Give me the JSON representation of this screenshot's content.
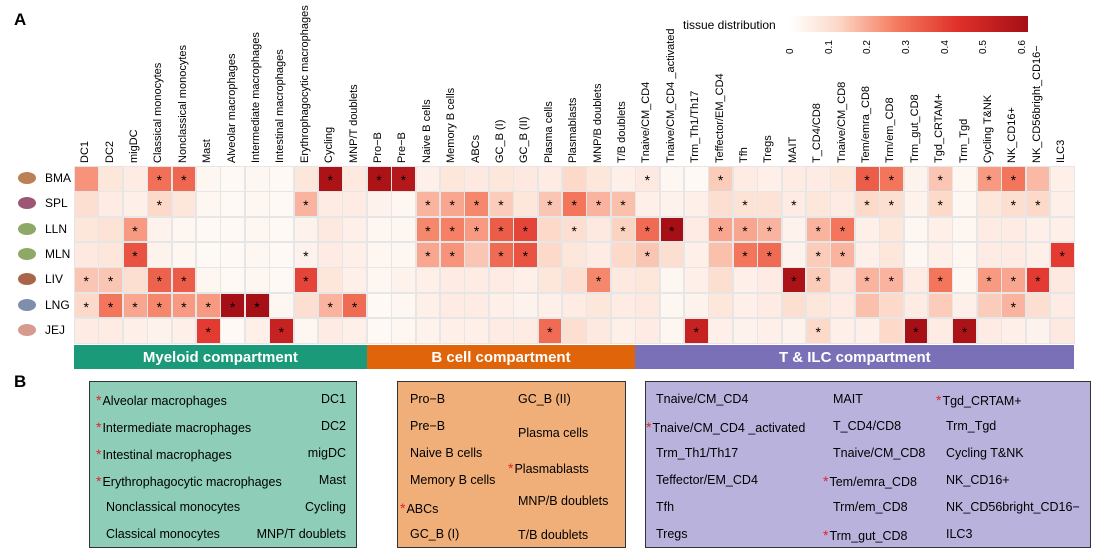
{
  "panel_a_letter": "A",
  "panel_b_letter": "B",
  "colorbar": {
    "title": "tissue distribution",
    "ticks": [
      "0",
      "0.1",
      "0.2",
      "0.3",
      "0.4",
      "0.5",
      "0.6"
    ],
    "min": 0,
    "max": 0.6,
    "low_color": "#ffffff",
    "high_color": "#a50f15"
  },
  "chart_data": {
    "type": "heatmap",
    "title": "",
    "colorbar_label": "tissue distribution",
    "rows": [
      "BMA",
      "SPL",
      "LLN",
      "MLN",
      "LIV",
      "LNG",
      "JEJ"
    ],
    "columns": [
      "DC1",
      "DC2",
      "migDC",
      "Classical monocytes",
      "Nonclassical monocytes",
      "Mast",
      "Alveolar macrophages",
      "Intermediate macrophages",
      "Intestinal macrophages",
      "Erythrophagocytic macrophages",
      "Cycling",
      "MNP/T doublets",
      "Pro−B",
      "Pre−B",
      "Naive B cells",
      "Memory B cells",
      "ABCs",
      "GC_B (I)",
      "GC_B (II)",
      "Plasma cells",
      "Plasmablasts",
      "MNP/B doublets",
      "T/B doublets",
      "Tnaive/CM_CD4",
      "Tnaive/CM_CD4 _activated",
      "Trm_Th1/Th17",
      "Teffector/EM_CD4",
      "Tfh",
      "Tregs",
      "MAIT",
      "T_CD4/CD8",
      "Tnaive/CM_CD8",
      "Tem/emra_CD8",
      "Trm/em_CD8",
      "Trm_gut_CD8",
      "Tgd_CRTAM+",
      "Trm_Tgd",
      "Cycling T&NK",
      "NK_CD16+",
      "NK_CD56bright_CD16−",
      "ILC3"
    ],
    "values": [
      [
        0.23,
        0.08,
        0.06,
        0.29,
        0.31,
        0.03,
        0.02,
        0.03,
        0.02,
        0.08,
        0.58,
        0.07,
        0.58,
        0.55,
        0.05,
        0.08,
        0.07,
        0.08,
        0.07,
        0.06,
        0.12,
        0.08,
        0.05,
        0.07,
        0.03,
        0.02,
        0.14,
        0.06,
        0.05,
        0.06,
        0.06,
        0.08,
        0.33,
        0.28,
        0.04,
        0.15,
        0.03,
        0.22,
        0.28,
        0.17,
        0.05
      ],
      [
        0.1,
        0.06,
        0.05,
        0.12,
        0.08,
        0.03,
        0.02,
        0.03,
        0.02,
        0.18,
        0.06,
        0.06,
        0.04,
        0.03,
        0.18,
        0.2,
        0.25,
        0.14,
        0.08,
        0.15,
        0.28,
        0.18,
        0.16,
        0.05,
        0.04,
        0.05,
        0.1,
        0.09,
        0.09,
        0.06,
        0.08,
        0.06,
        0.12,
        0.1,
        0.04,
        0.12,
        0.03,
        0.08,
        0.1,
        0.12,
        0.05
      ],
      [
        0.08,
        0.09,
        0.22,
        0.04,
        0.03,
        0.02,
        0.02,
        0.03,
        0.02,
        0.04,
        0.07,
        0.05,
        0.03,
        0.03,
        0.25,
        0.26,
        0.22,
        0.33,
        0.38,
        0.12,
        0.1,
        0.07,
        0.13,
        0.3,
        0.6,
        0.06,
        0.2,
        0.2,
        0.18,
        0.04,
        0.18,
        0.28,
        0.05,
        0.08,
        0.03,
        0.05,
        0.03,
        0.06,
        0.06,
        0.05,
        0.05
      ],
      [
        0.07,
        0.08,
        0.35,
        0.04,
        0.03,
        0.02,
        0.02,
        0.03,
        0.02,
        0.04,
        0.06,
        0.05,
        0.03,
        0.03,
        0.2,
        0.23,
        0.15,
        0.3,
        0.35,
        0.12,
        0.08,
        0.06,
        0.12,
        0.15,
        0.1,
        0.05,
        0.16,
        0.28,
        0.3,
        0.04,
        0.14,
        0.18,
        0.05,
        0.08,
        0.03,
        0.05,
        0.03,
        0.06,
        0.06,
        0.05,
        0.4
      ],
      [
        0.15,
        0.15,
        0.1,
        0.32,
        0.33,
        0.03,
        0.02,
        0.03,
        0.02,
        0.38,
        0.08,
        0.05,
        0.03,
        0.04,
        0.05,
        0.06,
        0.06,
        0.06,
        0.05,
        0.08,
        0.1,
        0.25,
        0.07,
        0.08,
        0.03,
        0.05,
        0.1,
        0.05,
        0.06,
        0.58,
        0.14,
        0.07,
        0.18,
        0.18,
        0.06,
        0.28,
        0.03,
        0.22,
        0.2,
        0.4,
        0.07
      ],
      [
        0.12,
        0.28,
        0.2,
        0.25,
        0.22,
        0.22,
        0.65,
        0.6,
        0.03,
        0.1,
        0.18,
        0.3,
        0.02,
        0.03,
        0.05,
        0.06,
        0.06,
        0.05,
        0.04,
        0.05,
        0.06,
        0.08,
        0.06,
        0.07,
        0.03,
        0.04,
        0.08,
        0.05,
        0.06,
        0.1,
        0.08,
        0.06,
        0.16,
        0.12,
        0.06,
        0.14,
        0.05,
        0.14,
        0.18,
        0.1,
        0.06
      ],
      [
        0.06,
        0.06,
        0.05,
        0.04,
        0.05,
        0.4,
        0.02,
        0.05,
        0.5,
        0.03,
        0.06,
        0.05,
        0.02,
        0.03,
        0.04,
        0.05,
        0.05,
        0.06,
        0.06,
        0.3,
        0.1,
        0.07,
        0.05,
        0.06,
        0.03,
        0.5,
        0.05,
        0.04,
        0.05,
        0.04,
        0.12,
        0.05,
        0.05,
        0.12,
        0.6,
        0.06,
        0.58,
        0.06,
        0.05,
        0.04,
        0.07
      ]
    ],
    "significant": [
      [
        0,
        0,
        0,
        1,
        1,
        0,
        0,
        0,
        0,
        0,
        1,
        0,
        1,
        1,
        0,
        0,
        0,
        0,
        0,
        0,
        0,
        0,
        0,
        1,
        0,
        0,
        1,
        0,
        0,
        0,
        0,
        0,
        1,
        1,
        0,
        1,
        0,
        1,
        1,
        0,
        0
      ],
      [
        0,
        0,
        0,
        1,
        0,
        0,
        0,
        0,
        0,
        1,
        0,
        0,
        0,
        0,
        1,
        1,
        1,
        1,
        0,
        1,
        1,
        1,
        1,
        0,
        0,
        0,
        0,
        1,
        0,
        1,
        0,
        0,
        1,
        1,
        0,
        1,
        0,
        0,
        1,
        1,
        0
      ],
      [
        0,
        0,
        1,
        0,
        0,
        0,
        0,
        0,
        0,
        0,
        0,
        0,
        0,
        0,
        1,
        1,
        1,
        1,
        1,
        0,
        1,
        0,
        1,
        1,
        1,
        0,
        1,
        1,
        1,
        0,
        1,
        1,
        0,
        0,
        0,
        0,
        0,
        0,
        0,
        0,
        0
      ],
      [
        0,
        0,
        1,
        0,
        0,
        0,
        0,
        0,
        0,
        1,
        0,
        0,
        0,
        0,
        1,
        1,
        0,
        1,
        1,
        0,
        0,
        0,
        0,
        1,
        0,
        0,
        0,
        1,
        1,
        0,
        1,
        1,
        0,
        0,
        0,
        0,
        0,
        0,
        0,
        0,
        1
      ],
      [
        1,
        1,
        0,
        1,
        1,
        0,
        0,
        0,
        0,
        1,
        0,
        0,
        0,
        0,
        0,
        0,
        0,
        0,
        0,
        0,
        0,
        1,
        0,
        0,
        0,
        0,
        0,
        0,
        0,
        1,
        1,
        0,
        1,
        1,
        0,
        1,
        0,
        1,
        1,
        1,
        0
      ],
      [
        1,
        1,
        1,
        1,
        1,
        1,
        1,
        1,
        0,
        0,
        1,
        1,
        0,
        0,
        0,
        0,
        0,
        0,
        0,
        0,
        0,
        0,
        0,
        0,
        0,
        0,
        0,
        0,
        0,
        0,
        0,
        0,
        0,
        0,
        0,
        0,
        0,
        0,
        1,
        0,
        0
      ],
      [
        0,
        0,
        0,
        0,
        0,
        1,
        0,
        0,
        1,
        0,
        0,
        0,
        0,
        0,
        0,
        0,
        0,
        0,
        0,
        1,
        0,
        0,
        0,
        0,
        0,
        1,
        0,
        0,
        0,
        0,
        1,
        0,
        0,
        0,
        1,
        0,
        1,
        0,
        0,
        0,
        0
      ]
    ]
  },
  "row_icons": [
    "bone-icon",
    "spleen-icon",
    "lymph-node-icon",
    "lymph-node-icon",
    "liver-icon",
    "lung-icon",
    "intestine-icon"
  ],
  "compartments": [
    {
      "label": "Myeloid compartment",
      "color": "#1a9a79",
      "start": 0,
      "end": 12
    },
    {
      "label": "B cell compartment",
      "color": "#e0640a",
      "start": 12,
      "end": 23
    },
    {
      "label": "T & ILC compartment",
      "color": "#7a70b8",
      "start": 23,
      "end": 41
    }
  ],
  "legend_b": {
    "myeloid": {
      "bg": "#8ecdb8",
      "left": [
        {
          "text": "Alveolar macrophages",
          "star": true
        },
        {
          "text": "Intermediate macrophages",
          "star": true
        },
        {
          "text": "Intestinal macrophages",
          "star": true
        },
        {
          "text": "Erythrophagocytic macrophages",
          "star": true
        },
        {
          "text": "Nonclassical monocytes",
          "star": false
        },
        {
          "text": "Classical monocytes",
          "star": false
        }
      ],
      "right": [
        {
          "text": "DC1",
          "star": false
        },
        {
          "text": "DC2",
          "star": false
        },
        {
          "text": "migDC",
          "star": false
        },
        {
          "text": "Mast",
          "star": false
        },
        {
          "text": "Cycling",
          "star": false
        },
        {
          "text": "MNP/T doublets",
          "star": false
        }
      ]
    },
    "bcell": {
      "bg": "#f0ae78",
      "left": [
        {
          "text": "Pro−B",
          "star": false
        },
        {
          "text": "Pre−B",
          "star": false
        },
        {
          "text": "Naive B cells",
          "star": false
        },
        {
          "text": "Memory B cells",
          "star": false
        },
        {
          "text": "ABCs",
          "star": true
        },
        {
          "text": "GC_B (I)",
          "star": false
        }
      ],
      "right": [
        {
          "text": "GC_B (II)",
          "star": false
        },
        {
          "text": "Plasma cells",
          "star": false
        },
        {
          "text": "Plasmablasts",
          "star": true
        },
        {
          "text": "MNP/B doublets",
          "star": false
        },
        {
          "text": "T/B doublets",
          "star": false
        }
      ]
    },
    "tilc": {
      "bg": "#b8b2dc",
      "col1": [
        {
          "text": "Tnaive/CM_CD4",
          "star": false
        },
        {
          "text": "Tnaive/CM_CD4 _activated",
          "star": true
        },
        {
          "text": "Trm_Th1/Th17",
          "star": false
        },
        {
          "text": "Teffector/EM_CD4",
          "star": false
        },
        {
          "text": "Tfh",
          "star": false
        },
        {
          "text": "Tregs",
          "star": false
        }
      ],
      "col2": [
        {
          "text": "MAIT",
          "star": false
        },
        {
          "text": "T_CD4/CD8",
          "star": false
        },
        {
          "text": "Tnaive/CM_CD8",
          "star": false
        },
        {
          "text": "Tem/emra_CD8",
          "star": true
        },
        {
          "text": "Trm/em_CD8",
          "star": false
        },
        {
          "text": "Trm_gut_CD8",
          "star": true
        }
      ],
      "col3": [
        {
          "text": "Tgd_CRTAM+",
          "star": true
        },
        {
          "text": "Trm_Tgd",
          "star": false
        },
        {
          "text": "Cycling T&NK",
          "star": false
        },
        {
          "text": "NK_CD16+",
          "star": false
        },
        {
          "text": "NK_CD56bright_CD16−",
          "star": false
        },
        {
          "text": "ILC3",
          "star": false
        }
      ]
    }
  }
}
